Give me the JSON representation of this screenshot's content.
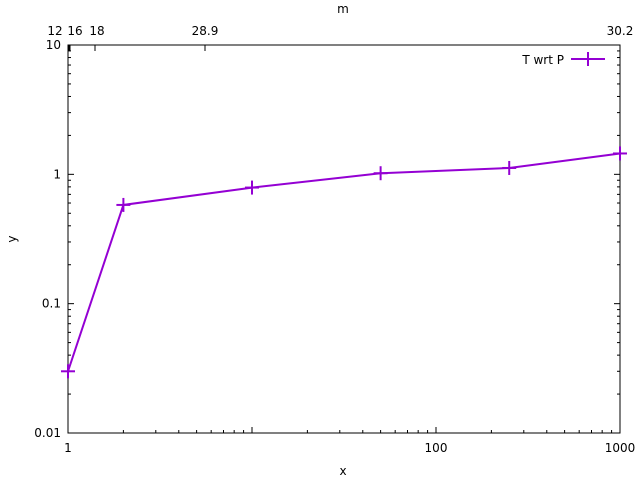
{
  "chart_data": {
    "type": "line",
    "xlabel": "x",
    "ylabel": "y",
    "x2label": "m",
    "xscale": "log",
    "yscale": "log",
    "xlim": [
      1,
      1000
    ],
    "ylim": [
      0.01,
      10
    ],
    "x_ticks": [
      "1",
      "100",
      "1000"
    ],
    "x_tick_values": [
      1,
      100,
      1000
    ],
    "y_ticks": [
      "0.01",
      "0.1",
      "1",
      "10"
    ],
    "y_tick_values": [
      0.01,
      0.1,
      1,
      10
    ],
    "x2_ticks": [
      "12",
      "16",
      "18",
      "28.9",
      "30.2"
    ],
    "grid": false,
    "legend_position": "top-right",
    "series": [
      {
        "name": "T wrt P",
        "color": "#9400d3",
        "x": [
          1,
          2,
          10,
          50,
          250,
          1000
        ],
        "y": [
          0.03,
          0.58,
          0.79,
          1.02,
          1.12,
          1.45
        ]
      }
    ]
  }
}
